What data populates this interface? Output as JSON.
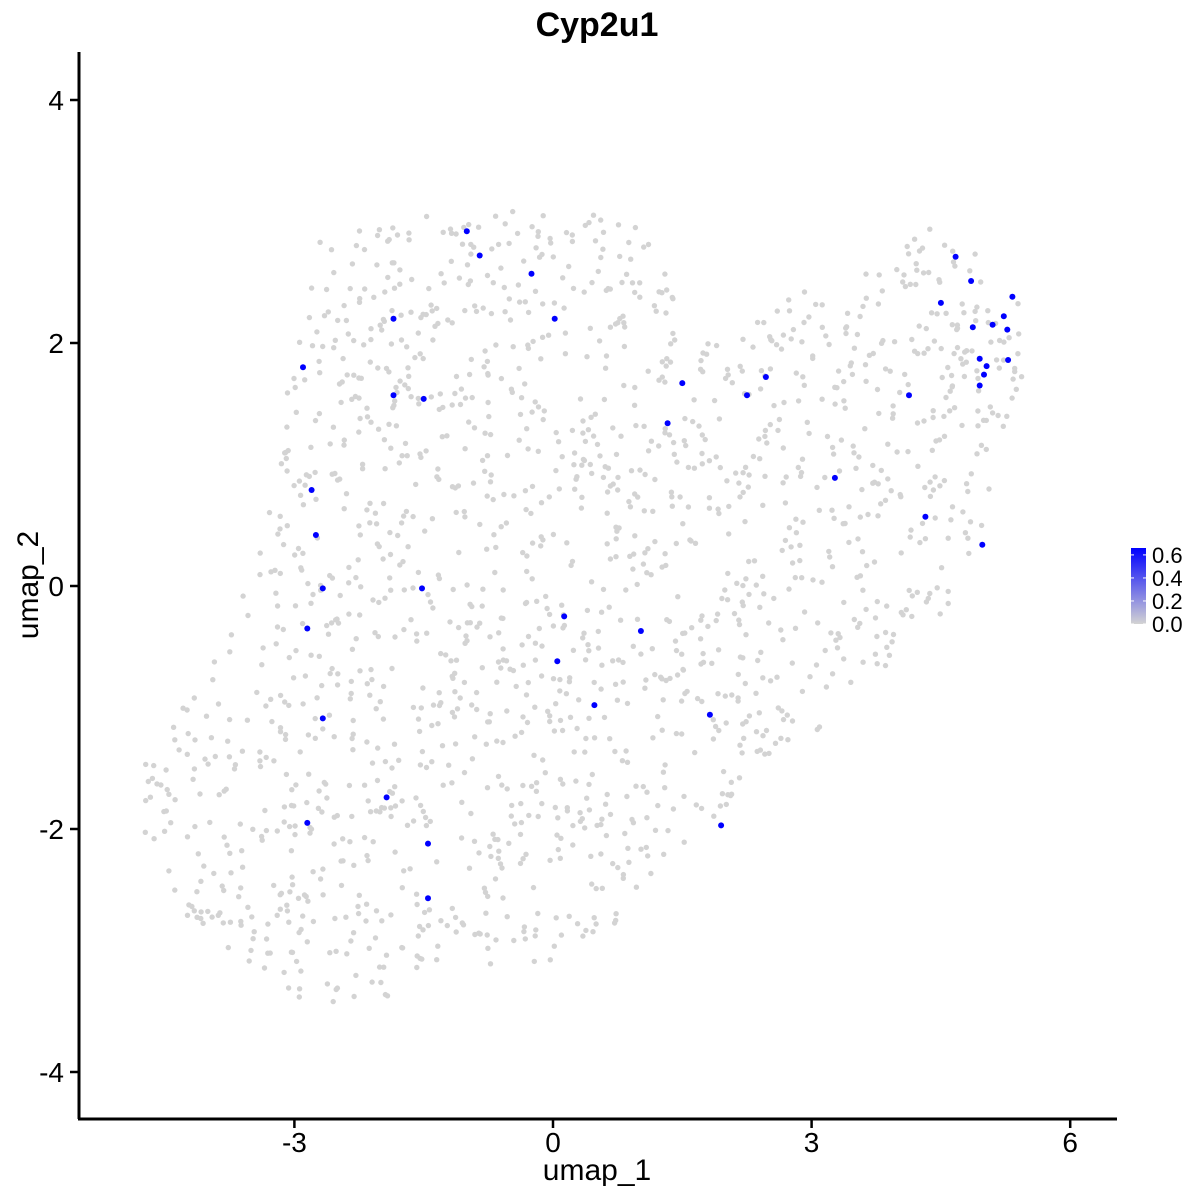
{
  "chart_data": {
    "type": "scatter",
    "title": "Cyp2u1",
    "xlabel": "umap_1",
    "ylabel": "umap_2",
    "xlim": [
      -5.3,
      6.5
    ],
    "ylim": [
      -4.4,
      4.4
    ],
    "x_ticks": [
      -3,
      0,
      3,
      6
    ],
    "x_tick_labels": [
      "-3",
      "0",
      "3",
      "6"
    ],
    "y_ticks": [
      4,
      2,
      0,
      -2,
      -4
    ],
    "y_tick_labels": [
      "4",
      "2",
      "0",
      "-2",
      "-4"
    ],
    "grid": false,
    "colors": {
      "low": "#d3d3d3",
      "high": "#0000ff"
    },
    "legend": {
      "position": "right",
      "type": "color-gradient",
      "breaks": [
        0.0,
        0.2,
        0.4,
        0.6
      ],
      "labels": [
        "0.0",
        "0.2",
        "0.4",
        "0.6"
      ],
      "range": [
        0.0,
        0.66
      ]
    },
    "highlighted_points": [
      {
        "x": -1.0,
        "y": 2.92
      },
      {
        "x": -0.85,
        "y": 2.72
      },
      {
        "x": -0.25,
        "y": 2.57
      },
      {
        "x": -1.85,
        "y": 2.2
      },
      {
        "x": 0.02,
        "y": 2.2
      },
      {
        "x": -2.9,
        "y": 1.8
      },
      {
        "x": -1.85,
        "y": 1.57
      },
      {
        "x": -1.5,
        "y": 1.54
      },
      {
        "x": 1.5,
        "y": 1.67
      },
      {
        "x": 1.33,
        "y": 1.34
      },
      {
        "x": 2.25,
        "y": 1.57
      },
      {
        "x": 2.47,
        "y": 1.72
      },
      {
        "x": 4.13,
        "y": 1.57
      },
      {
        "x": 4.67,
        "y": 2.71
      },
      {
        "x": 4.5,
        "y": 2.33
      },
      {
        "x": 4.85,
        "y": 2.51
      },
      {
        "x": 5.33,
        "y": 2.38
      },
      {
        "x": 5.23,
        "y": 2.22
      },
      {
        "x": 5.1,
        "y": 2.15
      },
      {
        "x": 4.87,
        "y": 2.13
      },
      {
        "x": 5.27,
        "y": 2.11
      },
      {
        "x": 4.95,
        "y": 1.87
      },
      {
        "x": 5.03,
        "y": 1.81
      },
      {
        "x": 5.28,
        "y": 1.86
      },
      {
        "x": 5.0,
        "y": 1.74
      },
      {
        "x": 4.95,
        "y": 1.65
      },
      {
        "x": 3.27,
        "y": 0.89
      },
      {
        "x": 4.32,
        "y": 0.57
      },
      {
        "x": 4.98,
        "y": 0.34
      },
      {
        "x": -2.8,
        "y": 0.79
      },
      {
        "x": -2.75,
        "y": 0.42
      },
      {
        "x": -2.67,
        "y": -0.02
      },
      {
        "x": -1.52,
        "y": -0.02
      },
      {
        "x": -2.85,
        "y": -0.35
      },
      {
        "x": 0.13,
        "y": -0.25
      },
      {
        "x": 1.02,
        "y": -0.37
      },
      {
        "x": 0.05,
        "y": -0.62
      },
      {
        "x": 0.48,
        "y": -0.98
      },
      {
        "x": -2.67,
        "y": -1.09
      },
      {
        "x": 1.82,
        "y": -1.06
      },
      {
        "x": -1.93,
        "y": -1.74
      },
      {
        "x": -2.85,
        "y": -1.95
      },
      {
        "x": 1.95,
        "y": -1.97
      },
      {
        "x": -1.45,
        "y": -2.12
      },
      {
        "x": -1.45,
        "y": -2.57
      }
    ],
    "background_points": {
      "count": 1700,
      "color": "#d3d3d3",
      "value": 0.0,
      "region_outline": [
        [
          -2.7,
          2.85
        ],
        [
          -1.5,
          3.05
        ],
        [
          0.0,
          3.18
        ],
        [
          1.05,
          2.95
        ],
        [
          1.75,
          2.05
        ],
        [
          2.7,
          2.45
        ],
        [
          3.6,
          2.62
        ],
        [
          4.4,
          3.1
        ],
        [
          5.05,
          2.65
        ],
        [
          5.45,
          2.35
        ],
        [
          5.5,
          1.8
        ],
        [
          5.15,
          1.1
        ],
        [
          5.0,
          0.2
        ],
        [
          4.2,
          -0.55
        ],
        [
          3.4,
          -1.0
        ],
        [
          2.3,
          -1.6
        ],
        [
          1.3,
          -2.3
        ],
        [
          0.7,
          -2.9
        ],
        [
          -0.1,
          -3.1
        ],
        [
          -1.1,
          -3.2
        ],
        [
          -2.0,
          -3.4
        ],
        [
          -2.6,
          -3.55
        ],
        [
          -3.8,
          -3.1
        ],
        [
          -4.5,
          -2.55
        ],
        [
          -4.85,
          -2.0
        ],
        [
          -4.75,
          -1.3
        ],
        [
          -4.05,
          -0.8
        ],
        [
          -3.55,
          0.0
        ],
        [
          -3.2,
          0.95
        ],
        [
          -3.05,
          1.8
        ]
      ]
    }
  }
}
